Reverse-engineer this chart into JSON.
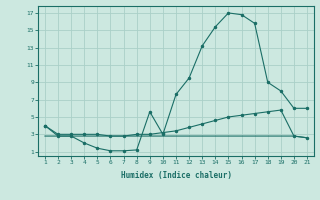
{
  "xlabel": "Humidex (Indice chaleur)",
  "x_ticks": [
    1,
    2,
    3,
    4,
    5,
    6,
    7,
    8,
    9,
    10,
    11,
    12,
    13,
    14,
    15,
    16,
    17,
    18,
    19,
    20,
    21
  ],
  "y_ticks": [
    1,
    3,
    5,
    7,
    9,
    11,
    13,
    15,
    17
  ],
  "xlim": [
    0.5,
    21.5
  ],
  "ylim": [
    0.5,
    17.8
  ],
  "bg_color": "#cce8e0",
  "grid_color": "#aad0c8",
  "line_color": "#1a6e66",
  "line1_x": [
    1,
    2,
    3,
    4,
    5,
    6,
    7,
    8,
    9,
    10,
    11,
    12,
    13,
    14,
    15,
    16,
    17,
    18,
    19,
    20,
    21
  ],
  "line1_y": [
    4.0,
    2.8,
    2.8,
    2.0,
    1.4,
    1.1,
    1.1,
    1.2,
    5.6,
    3.0,
    7.6,
    9.5,
    13.2,
    15.4,
    17.0,
    16.8,
    15.8,
    9.0,
    8.0,
    6.0,
    6.0
  ],
  "line2_x": [
    1,
    2,
    3,
    4,
    5,
    6,
    7,
    8,
    9,
    10,
    11,
    12,
    13,
    14,
    15,
    16,
    17,
    18,
    19,
    20,
    21
  ],
  "line2_y": [
    4.0,
    3.0,
    3.0,
    3.0,
    3.0,
    2.8,
    2.8,
    3.0,
    3.0,
    3.2,
    3.4,
    3.8,
    4.2,
    4.6,
    5.0,
    5.2,
    5.4,
    5.6,
    5.8,
    2.8,
    2.6
  ],
  "line3_x": [
    1,
    2,
    3,
    4,
    5,
    6,
    7,
    8,
    9,
    10,
    11,
    12,
    13,
    14,
    15,
    16,
    17,
    18,
    19,
    20,
    21
  ],
  "line3_y": [
    2.8,
    2.8,
    2.8,
    2.8,
    2.8,
    2.8,
    2.8,
    2.8,
    2.8,
    2.8,
    2.8,
    2.8,
    2.8,
    2.8,
    2.8,
    2.8,
    2.8,
    2.8,
    2.8,
    2.8,
    2.6
  ]
}
